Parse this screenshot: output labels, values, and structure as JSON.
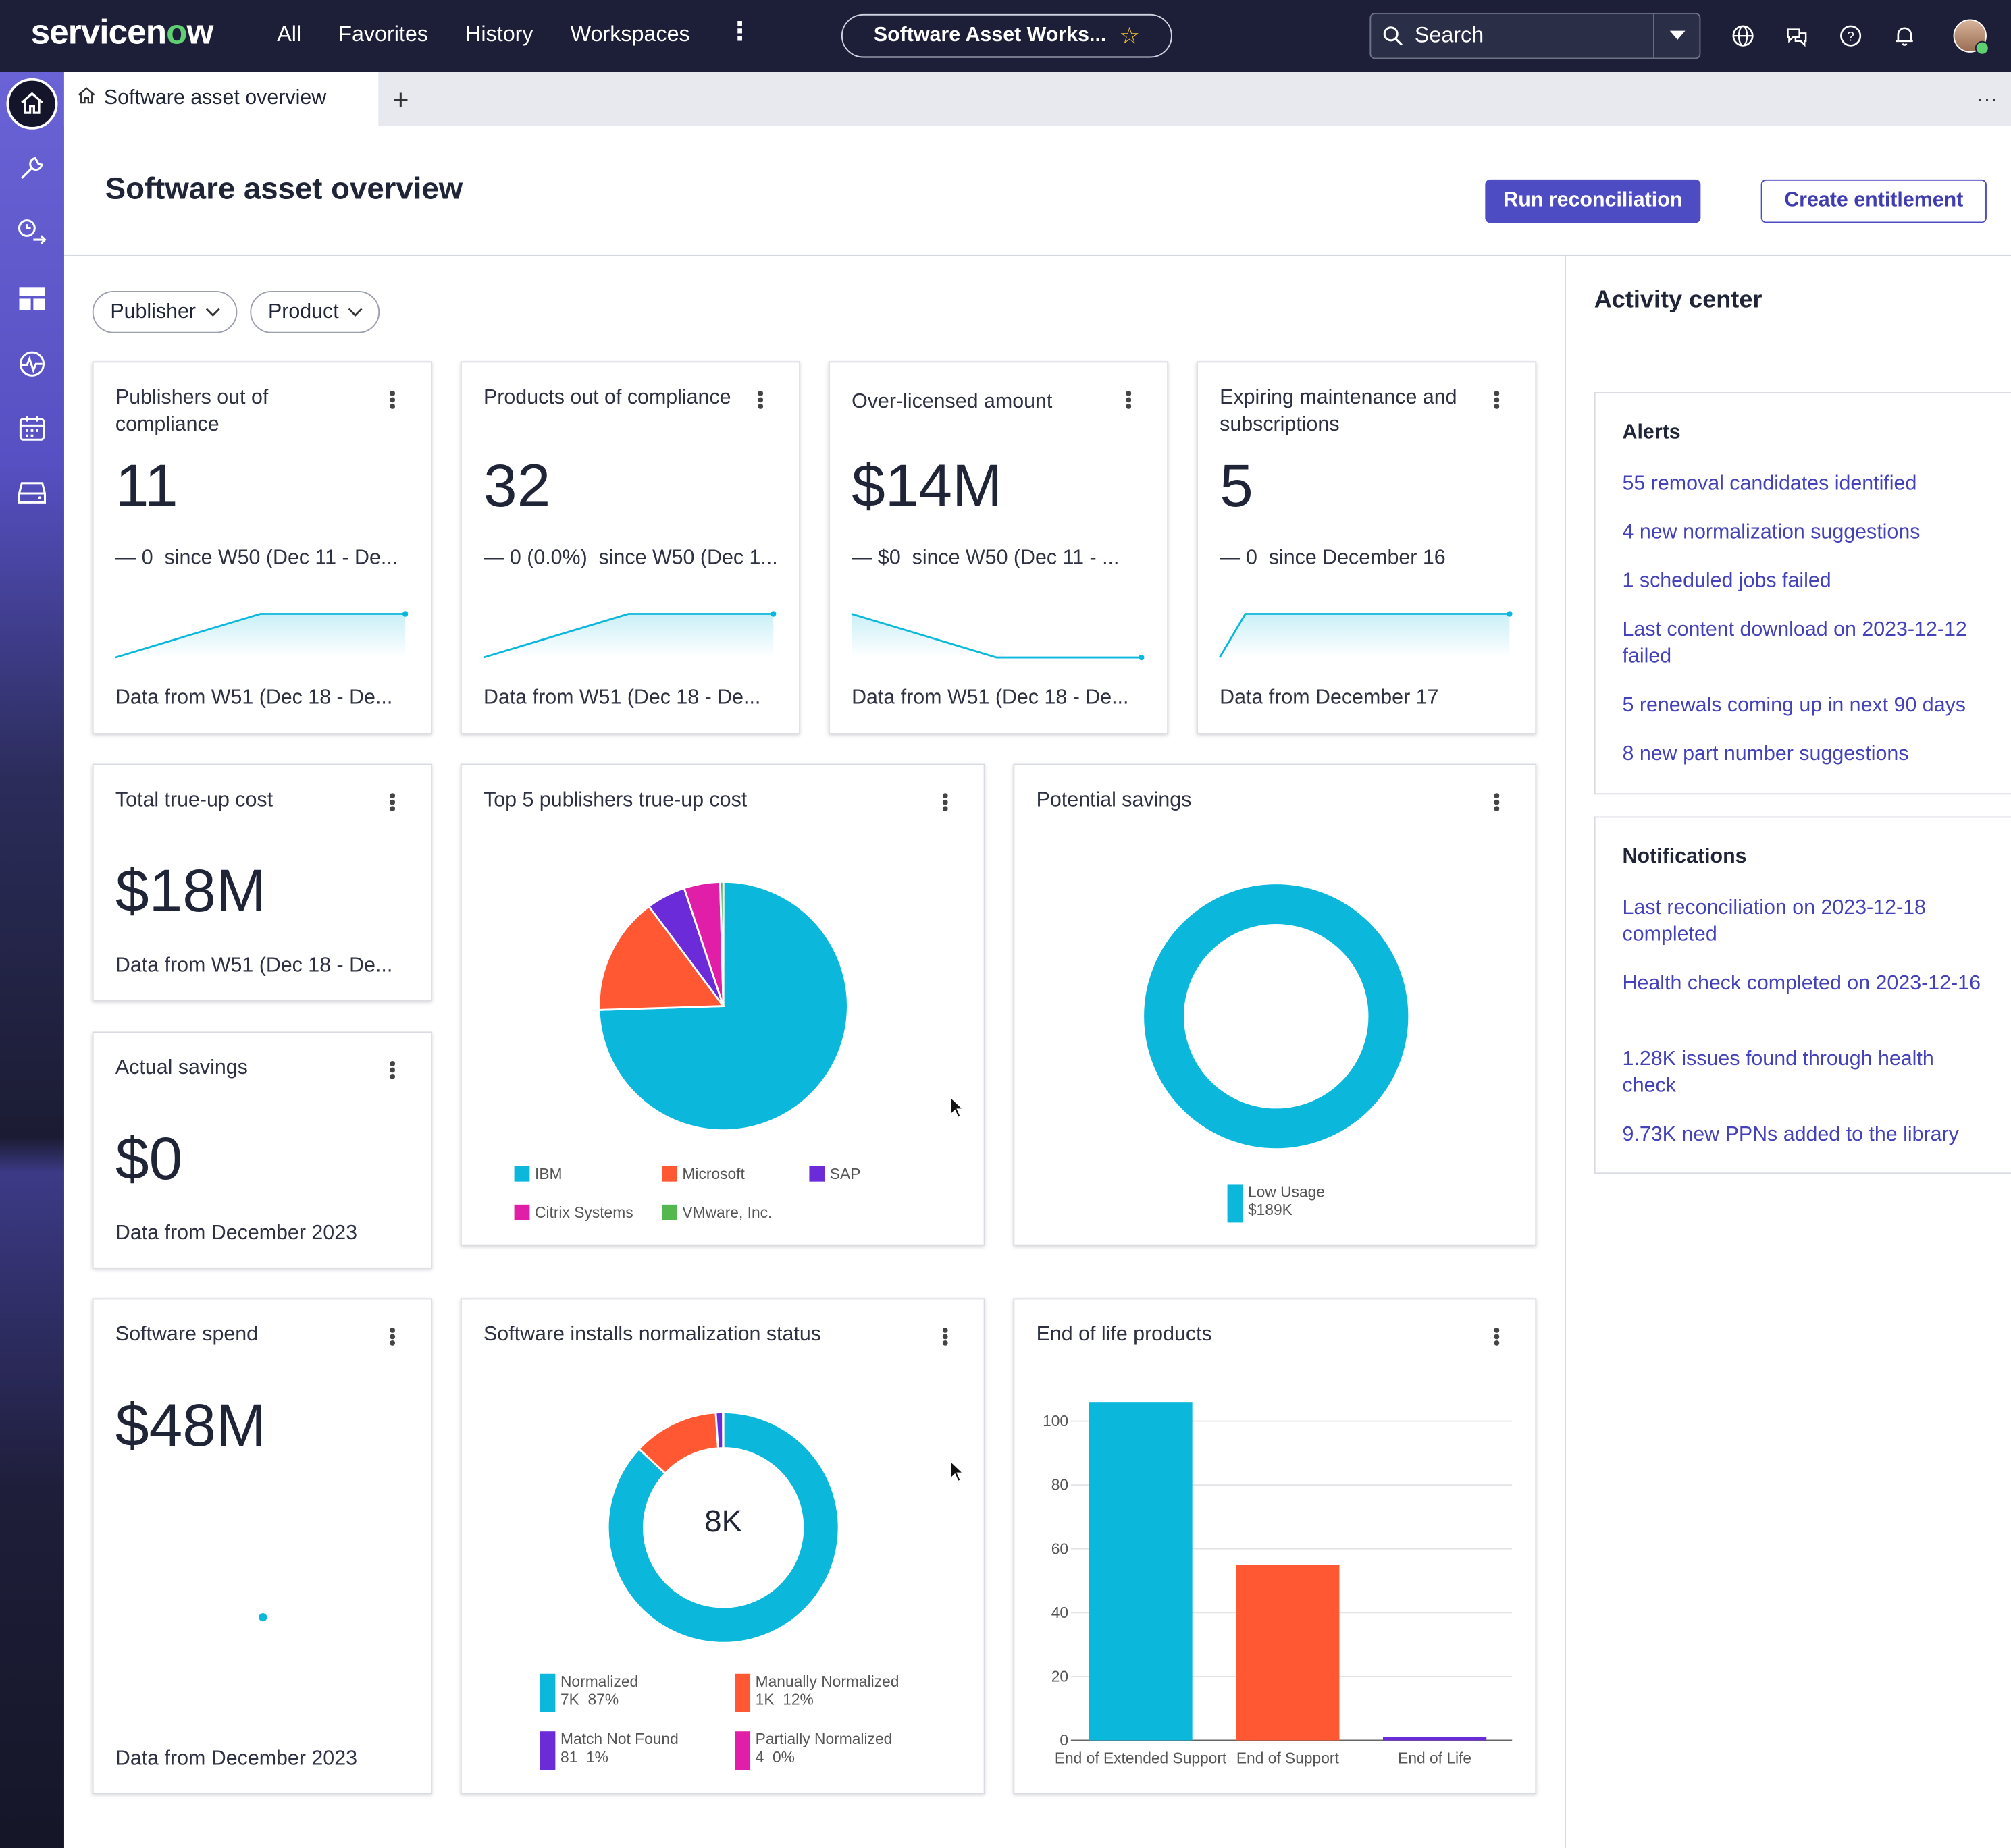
{
  "topbar": {
    "brand": "servicenow",
    "nav": [
      "All",
      "Favorites",
      "History",
      "Workspaces"
    ],
    "workspace_pill": "Software Asset Works...",
    "search_placeholder": "Search",
    "icons": [
      "globe-icon",
      "chat-icon",
      "help-icon",
      "bell-icon"
    ]
  },
  "tab": {
    "label": "Software asset overview",
    "add": "+",
    "more": "..."
  },
  "header": {
    "title": "Software asset overview",
    "run_button": "Run reconciliation",
    "create_button": "Create entitlement"
  },
  "filters": {
    "publisher": "Publisher",
    "product": "Product"
  },
  "kpis": [
    {
      "title": "Publishers out of compliance",
      "value": "11",
      "delta": "0",
      "delta_text": "since W50 (Dec 11 - De...",
      "footer": "Data from W51 (Dec 18 - De...",
      "trend": [
        1,
        2,
        2
      ]
    },
    {
      "title": "Products out of compliance",
      "value": "32",
      "delta": "0 (0.0%)",
      "delta_text": "since W50 (Dec 1...",
      "footer": "Data from W51 (Dec 18 - De...",
      "trend": [
        1,
        2,
        2
      ]
    },
    {
      "title": "Over-licensed amount",
      "value": "$14M",
      "delta": "$0",
      "delta_text": "since W50 (Dec 11 - ...",
      "footer": "Data from W51 (Dec 18 - De...",
      "trend": [
        2,
        1,
        1
      ]
    },
    {
      "title": "Expiring maintenance and subscriptions",
      "value": "5",
      "delta": "0",
      "delta_text": "since December 16",
      "footer": "Data from December 17",
      "trend": [
        1,
        2,
        2
      ]
    }
  ],
  "true_up": {
    "title": "Total true-up cost",
    "value": "$18M",
    "footer": "Data from W51 (Dec 18 - De..."
  },
  "actual_savings": {
    "title": "Actual savings",
    "value": "$0",
    "footer": "Data from December 2023"
  },
  "software_spend": {
    "title": "Software spend",
    "value": "$48M",
    "footer": "Data from December 2023"
  },
  "top5": {
    "title": "Top 5 publishers true-up cost"
  },
  "potential": {
    "title": "Potential savings",
    "legend_label": "Low Usage",
    "legend_value": "$189K"
  },
  "normalization": {
    "title": "Software installs normalization status",
    "center": "8K"
  },
  "eol": {
    "title": "End of life products"
  },
  "chart_data": [
    {
      "type": "pie",
      "title": "Top 5 publishers true-up cost",
      "series": [
        {
          "name": "IBM",
          "value": 73,
          "color": "#0bb8db"
        },
        {
          "name": "Microsoft",
          "value": 15,
          "color": "#ff5833"
        },
        {
          "name": "SAP",
          "value": 5,
          "color": "#6b2bd9"
        },
        {
          "name": "Citrix Systems",
          "value": 4.6,
          "color": "#e01ea7"
        },
        {
          "name": "VMware, Inc.",
          "value": 0.4,
          "color": "#52b84f"
        }
      ]
    },
    {
      "type": "pie",
      "title": "Potential savings",
      "series": [
        {
          "name": "Low Usage",
          "label": "$189K",
          "value": 189,
          "color": "#0bb8db"
        }
      ]
    },
    {
      "type": "pie",
      "title": "Software installs normalization status",
      "series": [
        {
          "name": "Normalized",
          "count": "7K",
          "pct": "87%",
          "value": 87,
          "color": "#0bb8db"
        },
        {
          "name": "Manually Normalized",
          "count": "1K",
          "pct": "12%",
          "value": 12,
          "color": "#ff5833"
        },
        {
          "name": "Match Not Found",
          "count": "81",
          "pct": "1%",
          "value": 1,
          "color": "#6b2bd9"
        },
        {
          "name": "Partially Normalized",
          "count": "4",
          "pct": "0%",
          "value": 0.05,
          "color": "#e01ea7"
        }
      ]
    },
    {
      "type": "bar",
      "title": "End of life products",
      "categories": [
        "End of Extended Support",
        "End of Support",
        "End of Life"
      ],
      "values": [
        106,
        55,
        1
      ],
      "colors": [
        "#0bb8db",
        "#ff5833",
        "#6b2bd9"
      ],
      "yticks": [
        0,
        20,
        40,
        60,
        80,
        100
      ],
      "ylim": [
        0,
        110
      ]
    }
  ],
  "activity": {
    "title": "Activity center",
    "alerts_title": "Alerts",
    "alerts": [
      "55 removal candidates identified",
      "4 new normalization suggestions",
      "1 scheduled jobs failed",
      "Last content download on 2023-12-12 failed",
      "5 renewals coming up in next 90 days",
      "8 new part number suggestions"
    ],
    "notifications_title": "Notifications",
    "notifications": [
      "Last reconciliation on 2023-12-18 completed",
      "Health check completed on 2023-12-16",
      "1.28K issues found through health check",
      "9.73K new PPNs added to the library"
    ]
  }
}
